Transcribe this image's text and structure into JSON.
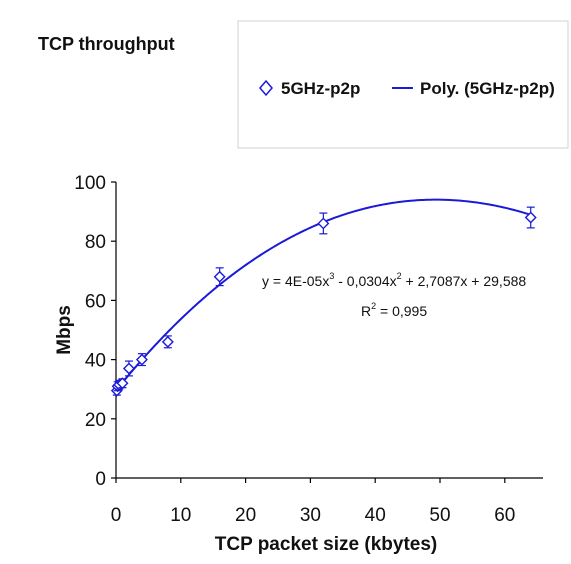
{
  "chart_data": {
    "type": "scatter",
    "title": "TCP throughput",
    "xlabel": "TCP packet size (kbytes)",
    "ylabel": "Mbps",
    "xlim": [
      0,
      65
    ],
    "ylim": [
      0,
      100
    ],
    "xticks": [
      0,
      10,
      20,
      30,
      40,
      50,
      60
    ],
    "yticks": [
      0,
      20,
      40,
      60,
      80,
      100
    ],
    "grid": false,
    "legend_placement": "top-right",
    "colors": {
      "series": "#1a1ad8",
      "axis": "#000000"
    },
    "series": [
      {
        "name": "5GHz-p2p",
        "marker": "diamond-open",
        "x": [
          0.128,
          0.256,
          0.5,
          1,
          2,
          4,
          8,
          16,
          32,
          64
        ],
        "y": [
          29.5,
          31,
          31.5,
          32,
          37,
          40,
          46,
          68,
          86,
          88
        ],
        "error": [
          1.5,
          1.5,
          1.5,
          1.5,
          2.5,
          2,
          2,
          3,
          3.5,
          3.5
        ]
      }
    ],
    "trendline": {
      "name": "Poly. (5GHz-p2p)",
      "type": "polynomial",
      "order": 3,
      "coefficients": [
        4e-05,
        -0.0304,
        2.7087,
        29.588
      ],
      "x_range": [
        0,
        64
      ],
      "equation_parts": {
        "part1": "y = 4E-05x",
        "exp1": "3",
        "part2": " - 0,0304x",
        "exp2": "2",
        "part3": " + 2,7087x + 29,588"
      },
      "r2_label": "R",
      "r2_exp": "2",
      "r2_value": " = 0,995"
    }
  }
}
